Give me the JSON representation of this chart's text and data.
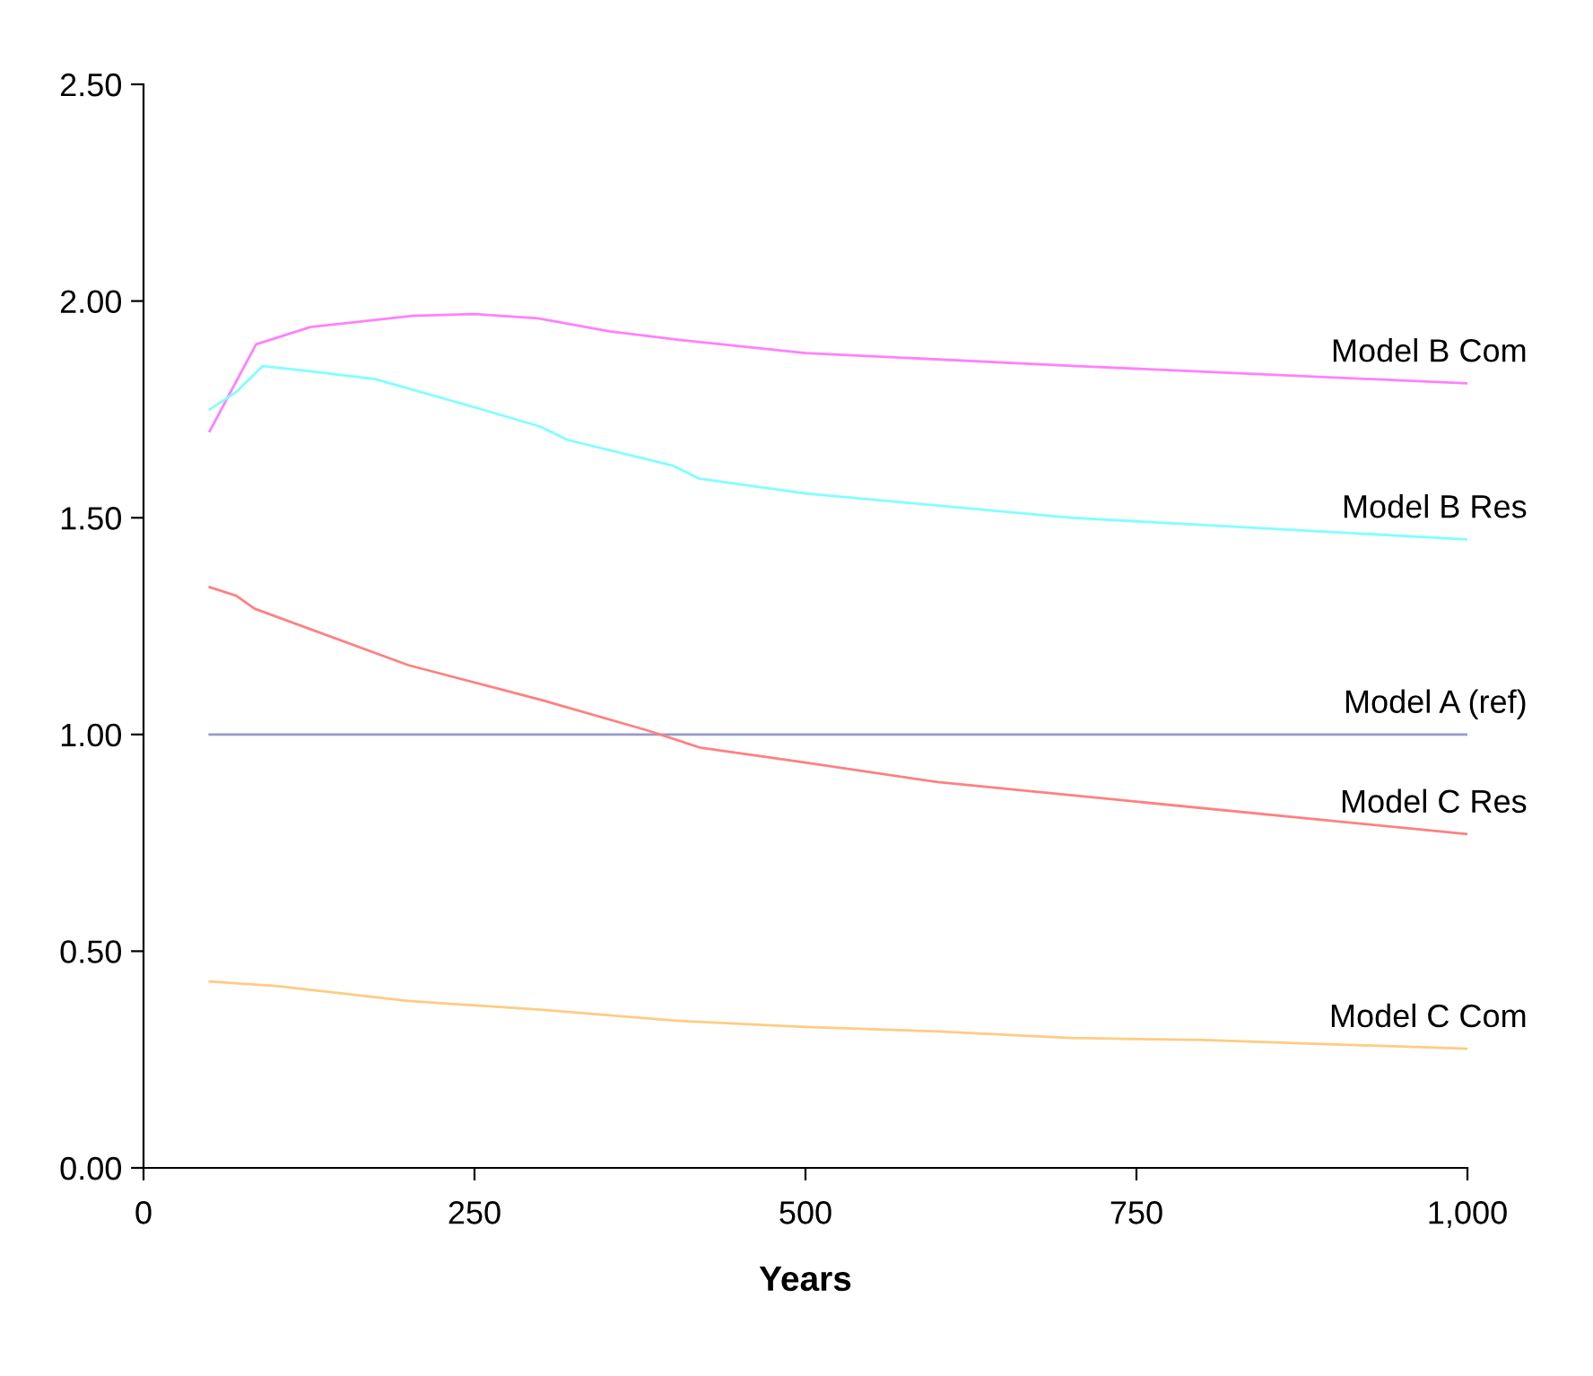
{
  "chart_data": {
    "type": "line",
    "xlabel": "Years",
    "xlim": [
      0,
      1000
    ],
    "ylim": [
      0,
      2.5
    ],
    "xticks": [
      0,
      250,
      500,
      750,
      {
        "value": 1000,
        "label": "1,000"
      }
    ],
    "yticks": [
      {
        "value": 0,
        "label": "0.00"
      },
      {
        "value": 0.5,
        "label": "0.50"
      },
      {
        "value": 1,
        "label": "1.00"
      },
      {
        "value": 1.5,
        "label": "1.50"
      },
      {
        "value": 2,
        "label": "2.00"
      },
      {
        "value": 2.5,
        "label": "2.50"
      }
    ],
    "grid": false,
    "legend": false,
    "line_style": "solid",
    "series": [
      {
        "name": "Model B Com",
        "color": "#ff80ff",
        "x": [
          50,
          85,
          126,
          203,
          250,
          298,
          352,
          406,
          500,
          705,
          1000
        ],
        "values": [
          1.7,
          1.9,
          1.94,
          1.966,
          1.97,
          1.96,
          1.93,
          1.91,
          1.88,
          1.85,
          1.81
        ]
      },
      {
        "name": "Model B Res",
        "color": "#80ffff",
        "x": [
          50,
          70,
          90,
          120,
          175,
          250,
          300,
          320,
          400,
          420,
          500,
          700,
          1000
        ],
        "values": [
          1.75,
          1.79,
          1.85,
          1.84,
          1.82,
          1.755,
          1.71,
          1.68,
          1.62,
          1.59,
          1.556,
          1.5,
          1.45
        ]
      },
      {
        "name": "Model A (ref)",
        "color": "#9999cc",
        "x": [
          50,
          1000
        ],
        "values": [
          1.0,
          1.0
        ]
      },
      {
        "name": "Model C Res",
        "color": "#ff8080",
        "x": [
          50,
          70,
          84,
          200,
          300,
          380,
          420,
          500,
          600,
          700,
          1000
        ],
        "values": [
          1.34,
          1.32,
          1.29,
          1.16,
          1.08,
          1.01,
          0.97,
          0.935,
          0.89,
          0.86,
          0.77
        ]
      },
      {
        "name": "Model C Com",
        "color": "#ffcc80",
        "x": [
          50,
          100,
          200,
          300,
          400,
          500,
          600,
          700,
          800,
          1000
        ],
        "values": [
          0.43,
          0.42,
          0.385,
          0.365,
          0.34,
          0.325,
          0.315,
          0.3,
          0.295,
          0.275
        ]
      }
    ]
  }
}
